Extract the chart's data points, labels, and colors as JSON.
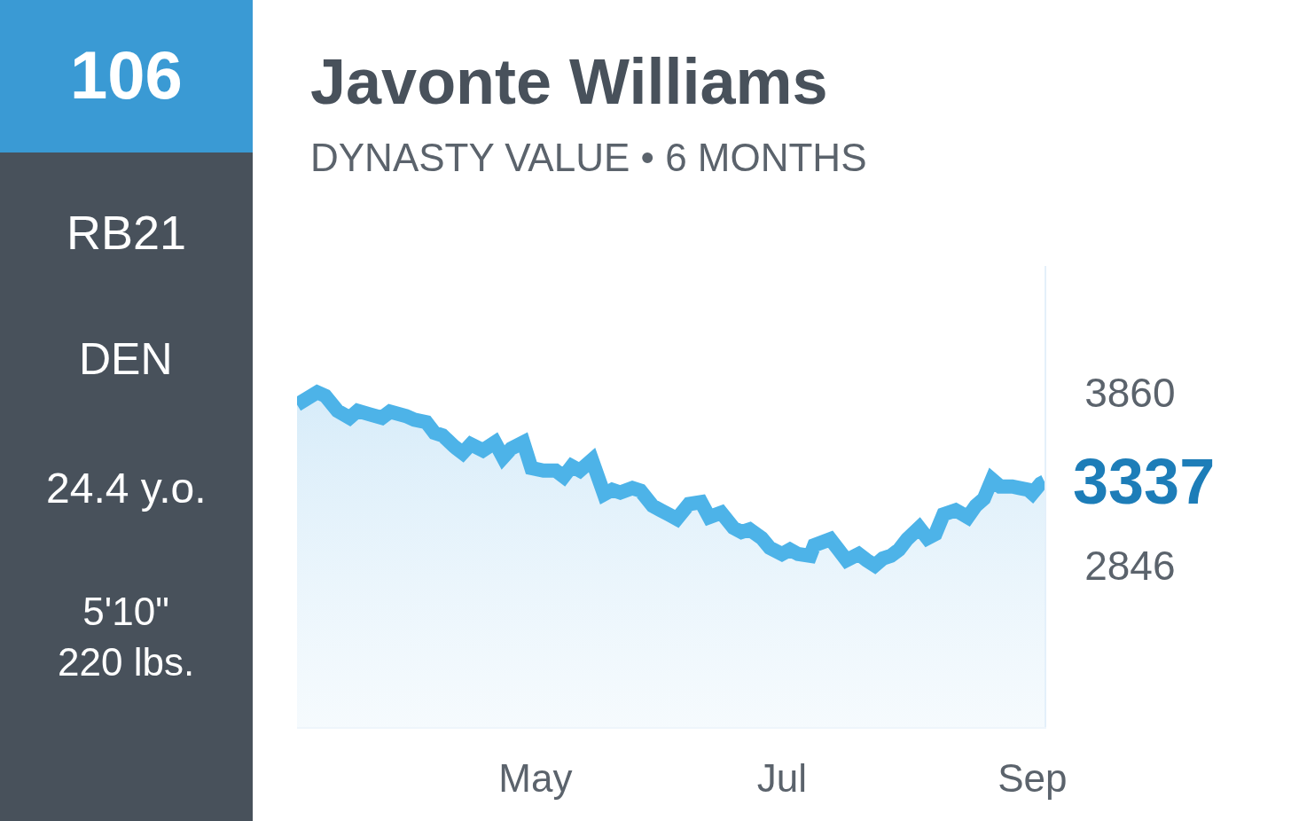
{
  "chart_data": {
    "type": "area",
    "title": "Javonte Williams",
    "subtitle": "DYNASTY VALUE • 6 MONTHS",
    "annotations": [
      "106",
      "RB21",
      "DEN",
      "24.4 y.o.",
      "5'10\"\n220 lbs.",
      {
        "text": "3337",
        "x": "--09-04",
        "y": 3337
      }
    ],
    "color": "#4db3e8",
    "x": [
      "--03-03",
      "--03-08",
      "--03-10",
      "--03-13",
      "--03-16",
      "--03-18",
      "--03-21",
      "--03-24",
      "--03-26",
      "--03-30",
      "--04-01",
      "--04-04",
      "--04-06",
      "--04-08",
      "--04-11",
      "--04-13",
      "--04-15",
      "--04-18",
      "--04-21",
      "--04-23",
      "--04-25",
      "--04-28",
      "--04-30",
      "--05-03",
      "--05-06",
      "--05-08",
      "--05-10",
      "--05-12",
      "--05-15",
      "--05-18",
      "--05-20",
      "--05-22",
      "--05-25",
      "--05-27",
      "--05-30",
      "--06-01",
      "--06-03",
      "--06-05",
      "--06-08",
      "--06-11",
      "--06-13",
      "--06-16",
      "--06-19",
      "--06-21",
      "--06-23",
      "--06-26",
      "--06-28",
      "--07-01",
      "--07-03",
      "--07-05",
      "--07-08",
      "--07-09",
      "--07-13",
      "--07-15",
      "--07-17",
      "--07-20",
      "--07-22",
      "--07-24",
      "--07-26",
      "--07-28",
      "--07-30",
      "--08-01",
      "--08-04",
      "--08-06",
      "--08-08",
      "--08-10",
      "--08-13",
      "--08-16",
      "--08-18",
      "--08-20",
      "--08-22",
      "--08-24",
      "--08-27",
      "--08-29",
      "--08-31",
      "--09-01",
      "--09-03",
      "--09-04"
    ],
    "values": [
      3788,
      3860,
      3839,
      3752,
      3711,
      3752,
      3731,
      3711,
      3747,
      3721,
      3700,
      3685,
      3623,
      3608,
      3541,
      3505,
      3556,
      3520,
      3567,
      3479,
      3531,
      3567,
      3417,
      3402,
      3402,
      3366,
      3428,
      3402,
      3464,
      3263,
      3289,
      3273,
      3299,
      3284,
      3196,
      3170,
      3145,
      3119,
      3206,
      3217,
      3129,
      3155,
      3067,
      3042,
      3057,
      3006,
      2949,
      2913,
      2939,
      2913,
      2903,
      2964,
      3000,
      2939,
      2877,
      2913,
      2877,
      2846,
      2887,
      2903,
      2939,
      3000,
      3067,
      3006,
      3031,
      3145,
      3170,
      3129,
      3196,
      3237,
      3350,
      3309,
      3309,
      3299,
      3289,
      3268,
      3325,
      3337
    ],
    "xlim": [
      "--03-03",
      "--09-04"
    ],
    "ylim": [
      1900,
      4600
    ],
    "xticks": [
      {
        "value": "--05-01",
        "label": "May"
      },
      {
        "value": "--07-01",
        "label": "Jul"
      },
      {
        "value": "--09-01",
        "label": "Sep"
      }
    ],
    "yticks": [
      3860,
      2846
    ]
  }
}
